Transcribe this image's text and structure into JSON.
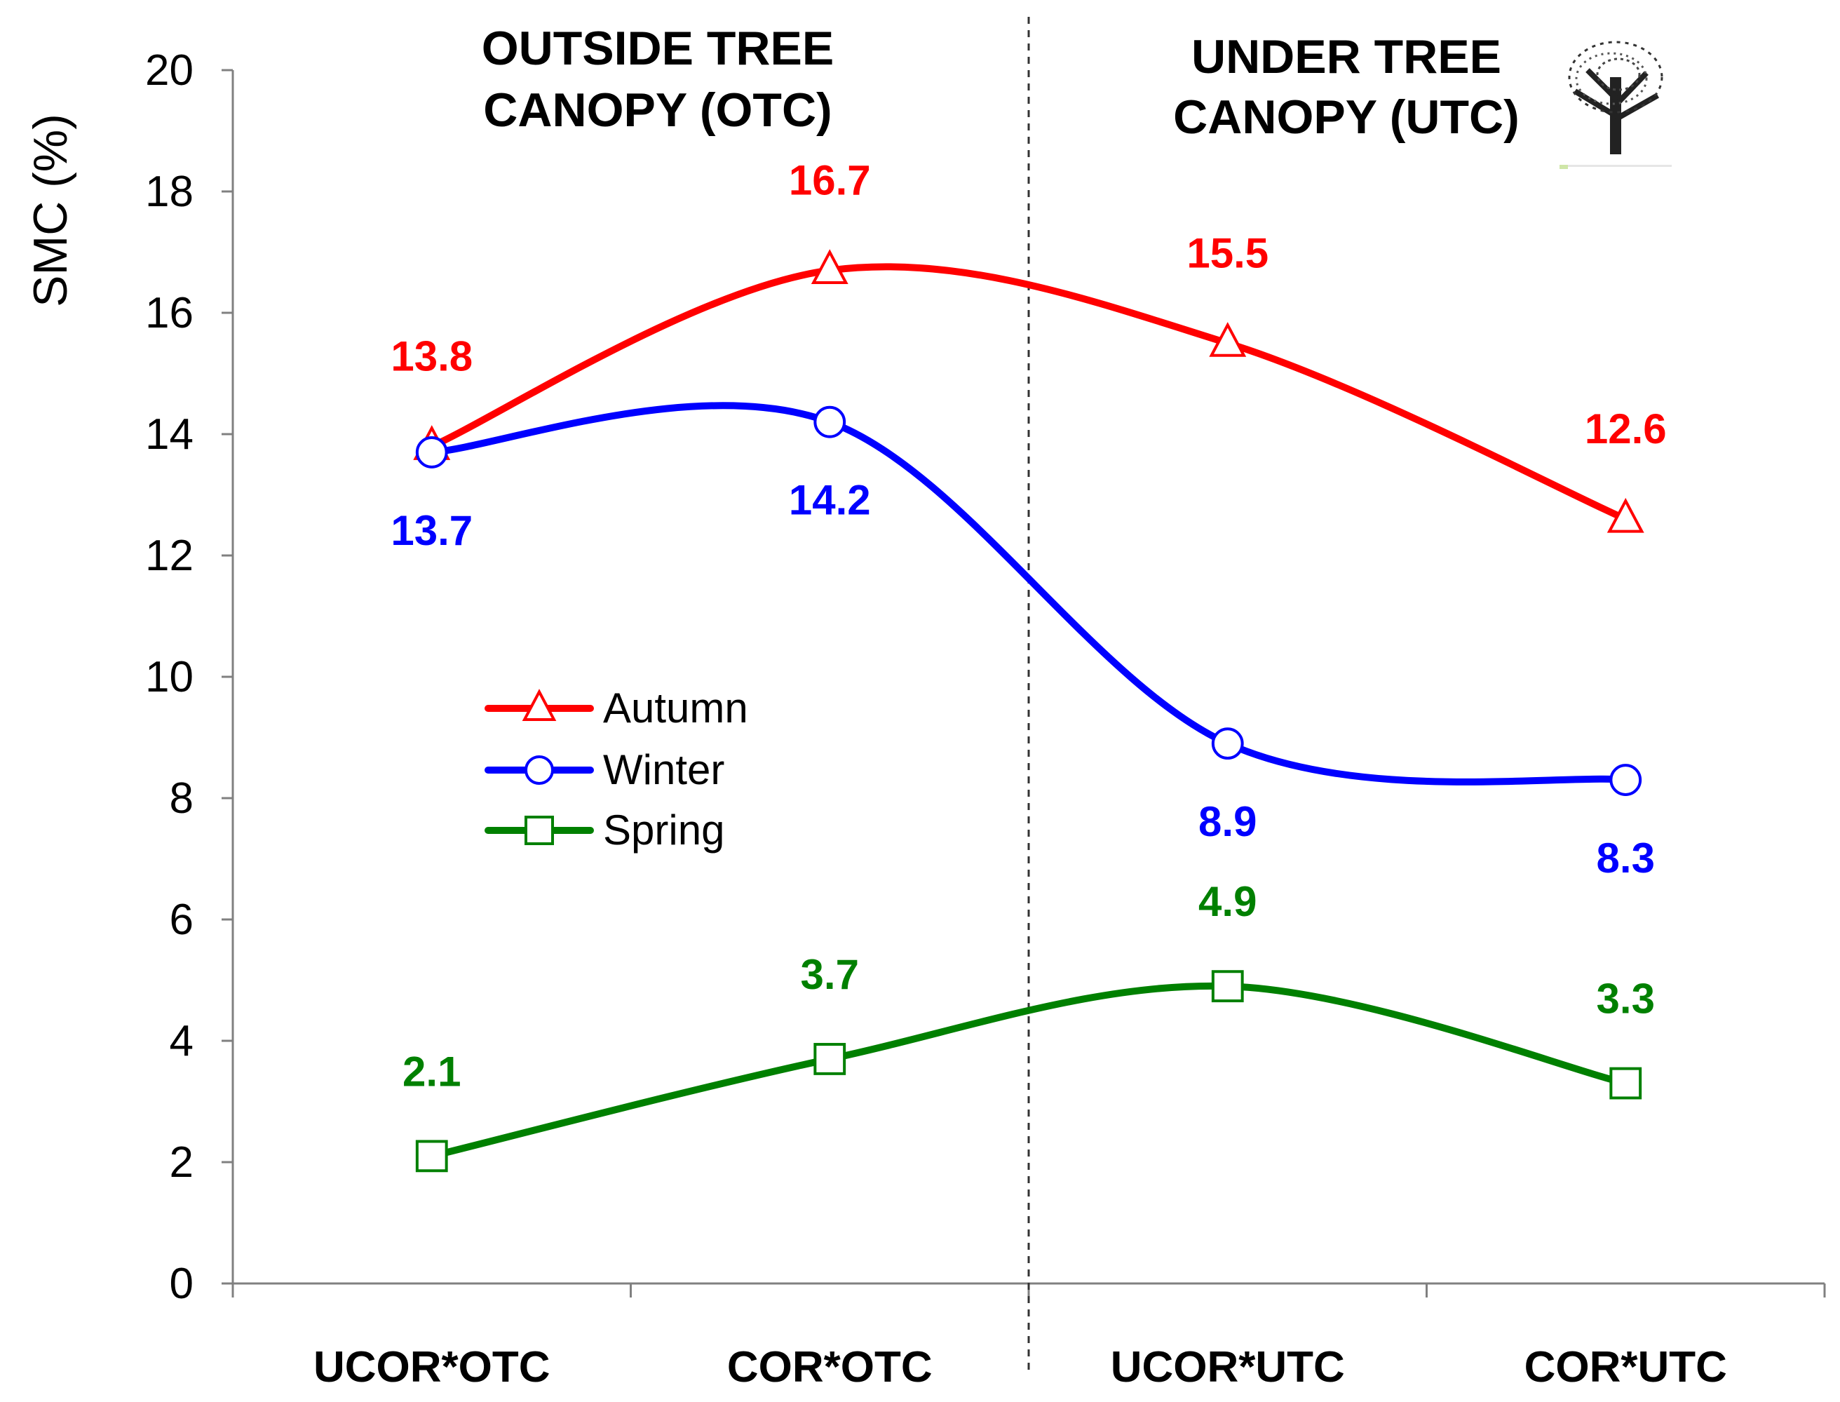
{
  "chart_data": {
    "type": "line",
    "title": "",
    "xlabel": "",
    "ylabel": "SMC (%)",
    "ylim": [
      0,
      20
    ],
    "yticks": [
      "0",
      "2",
      "4",
      "6",
      "8",
      "10",
      "12",
      "14",
      "16",
      "18",
      "20"
    ],
    "categories": [
      "UCOR*OTC",
      "COR*OTC",
      "UCOR*UTC",
      "COR*UTC"
    ],
    "grid": false,
    "legend_position": "center-left",
    "regions": [
      {
        "label_line1": "OUTSIDE TREE",
        "label_line2": "CANOPY (OTC)"
      },
      {
        "label_line1": "UNDER TREE",
        "label_line2": "CANOPY (UTC)"
      }
    ],
    "series": [
      {
        "name": "Autumn",
        "color": "#ff0000",
        "marker": "triangle",
        "values": [
          13.8,
          16.7,
          15.5,
          12.6
        ],
        "labels": [
          "13.8",
          "16.7",
          "15.5",
          "12.6"
        ]
      },
      {
        "name": "Winter",
        "color": "#0000ff",
        "marker": "circle",
        "values": [
          13.7,
          14.2,
          8.9,
          8.3
        ],
        "labels": [
          "13.7",
          "14.2",
          "8.9",
          "8.3"
        ]
      },
      {
        "name": "Spring",
        "color": "#008000",
        "marker": "square",
        "values": [
          2.1,
          3.7,
          4.9,
          3.3
        ],
        "labels": [
          "2.1",
          "3.7",
          "4.9",
          "3.3"
        ]
      }
    ]
  },
  "decorations": {
    "tree_icon": "tree-icon"
  }
}
